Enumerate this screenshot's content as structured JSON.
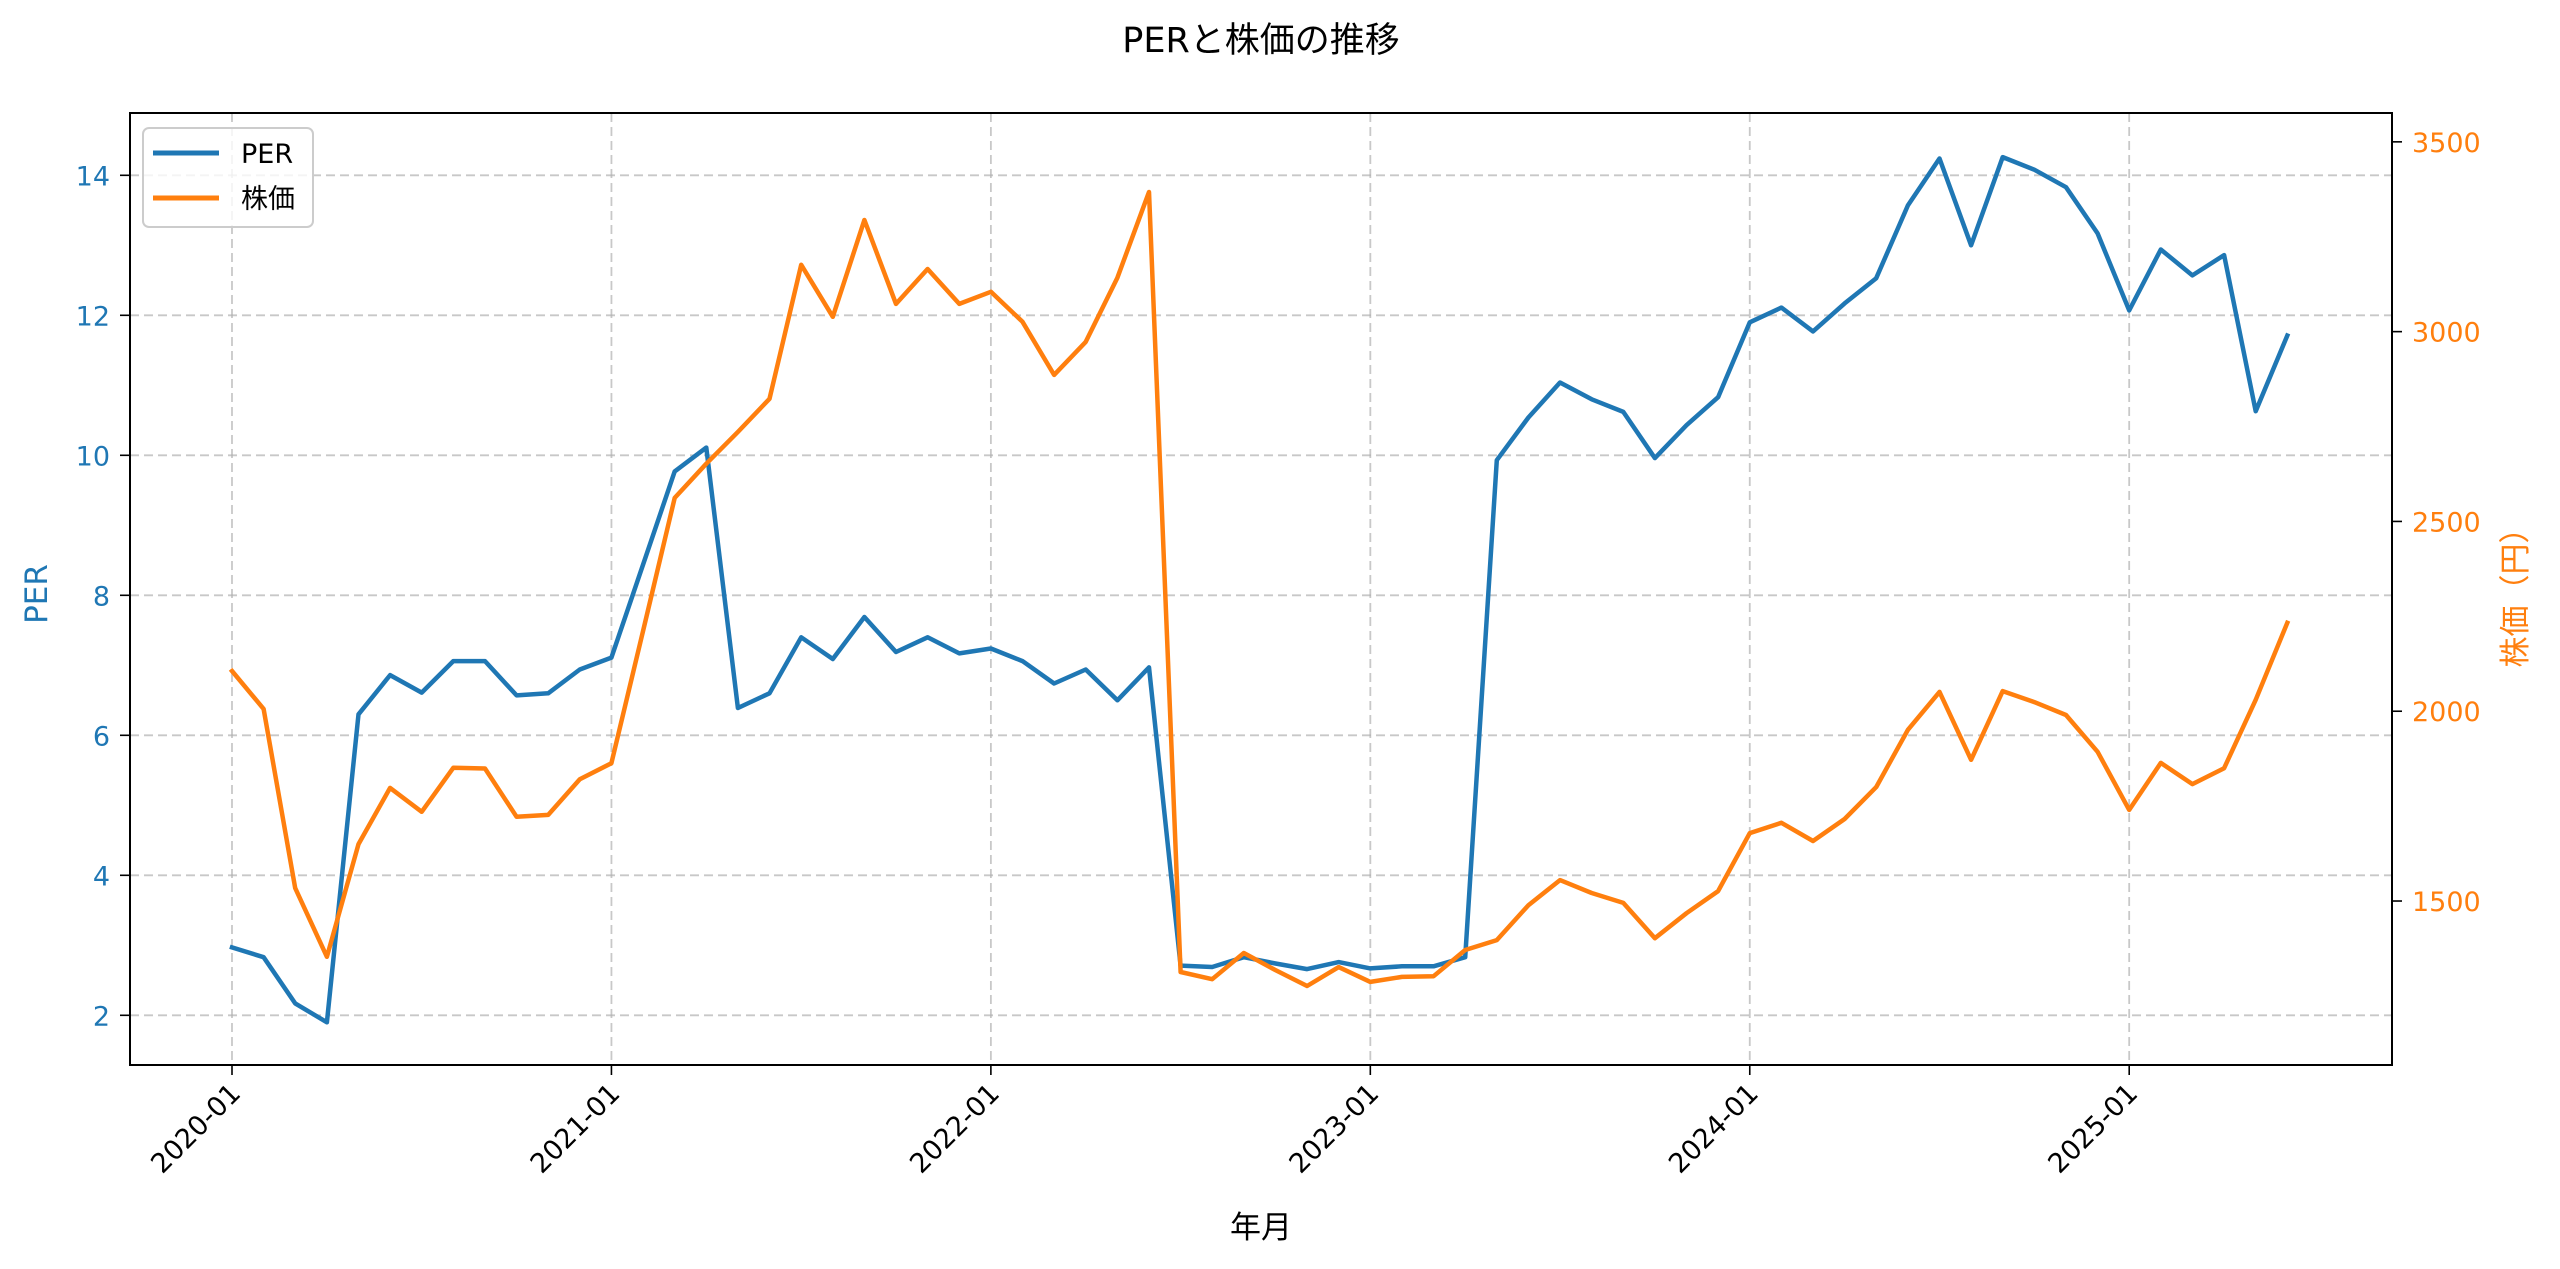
{
  "chart_data": {
    "type": "line",
    "title": "PERと株価の推移",
    "xlabel": "年月",
    "ylabel_left": "PER",
    "ylabel_right": "株価（円）",
    "x": [
      "2020-01",
      "2020-02",
      "2020-03",
      "2020-04",
      "2020-05",
      "2020-06",
      "2020-07",
      "2020-08",
      "2020-09",
      "2020-10",
      "2020-11",
      "2020-12",
      "2021-01",
      "2021-02",
      "2021-03",
      "2021-04",
      "2021-05",
      "2021-06",
      "2021-07",
      "2021-08",
      "2021-09",
      "2021-10",
      "2021-11",
      "2021-12",
      "2022-01",
      "2022-02",
      "2022-03",
      "2022-04",
      "2022-05",
      "2022-06",
      "2022-07",
      "2022-08",
      "2022-09",
      "2022-10",
      "2022-11",
      "2022-12",
      "2023-01",
      "2023-02",
      "2023-03",
      "2023-04",
      "2023-05",
      "2023-06",
      "2023-07",
      "2023-08",
      "2023-09",
      "2023-10",
      "2023-11",
      "2023-12",
      "2024-01",
      "2024-02",
      "2024-03",
      "2024-04",
      "2024-05",
      "2024-06",
      "2024-07",
      "2024-08",
      "2024-09",
      "2024-10",
      "2024-11",
      "2024-12",
      "2025-01",
      "2025-02",
      "2025-03",
      "2025-04",
      "2025-05",
      "2025-06"
    ],
    "x_ticks": [
      "2020-01",
      "2021-01",
      "2022-01",
      "2023-01",
      "2024-01",
      "2025-01"
    ],
    "series": [
      {
        "name": "PER",
        "axis": "left",
        "color": "#1f77b4",
        "values": [
          2.97,
          2.83,
          2.17,
          1.9,
          6.3,
          6.86,
          6.61,
          7.06,
          7.06,
          6.57,
          6.6,
          6.94,
          7.11,
          8.44,
          9.77,
          10.11,
          6.39,
          6.6,
          7.4,
          7.09,
          7.69,
          7.19,
          7.4,
          7.17,
          7.24,
          7.06,
          6.74,
          6.94,
          6.5,
          6.97,
          2.71,
          2.69,
          2.83,
          2.74,
          2.66,
          2.76,
          2.67,
          2.7,
          2.7,
          2.83,
          9.93,
          10.54,
          11.04,
          10.8,
          10.62,
          9.96,
          10.43,
          10.83,
          11.9,
          12.11,
          11.77,
          12.17,
          12.53,
          13.57,
          14.24,
          13.0,
          14.26,
          14.08,
          13.83,
          13.17,
          12.07,
          12.94,
          12.57,
          12.86,
          10.63,
          11.71
        ]
      },
      {
        "name": "株価",
        "axis": "right",
        "color": "#ff7f0e",
        "values": [
          2106,
          2006,
          1534,
          1353,
          1650,
          1798,
          1735,
          1851,
          1849,
          1722,
          1727,
          1821,
          1863,
          2212,
          2562,
          2652,
          2736,
          2823,
          3176,
          3039,
          3294,
          3073,
          3165,
          3073,
          3105,
          3026,
          2886,
          2973,
          3142,
          3368,
          1313,
          1294,
          1363,
          1318,
          1276,
          1326,
          1287,
          1300,
          1302,
          1371,
          1397,
          1489,
          1555,
          1521,
          1495,
          1402,
          1468,
          1526,
          1679,
          1706,
          1658,
          1716,
          1800,
          1951,
          2051,
          1872,
          2053,
          2024,
          1990,
          1893,
          1740,
          1864,
          1808,
          1850,
          2030,
          2233
        ]
      }
    ],
    "ylim_left": [
      1.29,
      14.89
    ],
    "yticks_left": [
      2,
      4,
      6,
      8,
      10,
      12,
      14
    ],
    "ylim_right": [
      1068,
      3576
    ],
    "yticks_right": [
      1500,
      2000,
      2500,
      3000,
      3500
    ],
    "grid": true,
    "legend_position": "upper left",
    "left_axis_color": "#1f77b4",
    "right_axis_color": "#ff7f0e"
  },
  "legend": {
    "items": [
      {
        "label": "PER",
        "color": "#1f77b4"
      },
      {
        "label": "株価",
        "color": "#ff7f0e"
      }
    ]
  }
}
